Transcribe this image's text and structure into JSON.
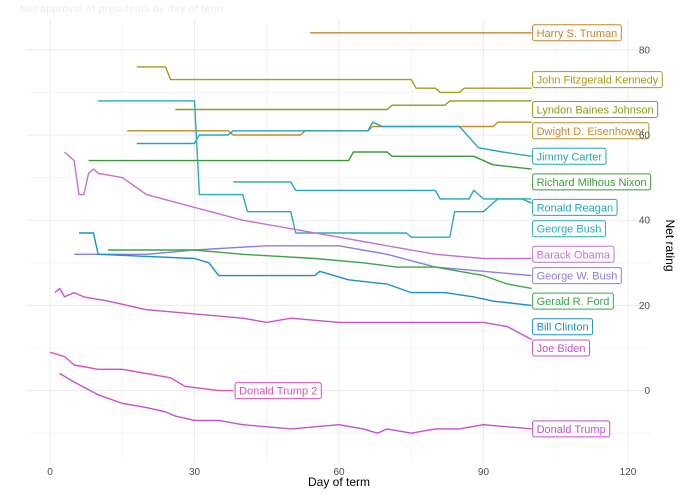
{
  "header": {
    "faint_text": "Net approval of presidents by day of term"
  },
  "chart_data": {
    "type": "line",
    "title": "",
    "xlabel": "Day of term",
    "ylabel": "Net rating",
    "xlim": [
      -5,
      125
    ],
    "ylim": [
      -17,
      87
    ],
    "xticks": [
      0,
      30,
      60,
      90,
      120
    ],
    "yticks": [
      0,
      20,
      40,
      60,
      80
    ],
    "grid": true,
    "y_axis_position": "right",
    "series": [
      {
        "name": "Harry S. Truman",
        "color": "#c8822e",
        "label_y": 84,
        "points": [
          [
            54,
            84
          ],
          [
            100,
            84
          ]
        ]
      },
      {
        "name": "John Fitzgerald Kennedy",
        "color": "#a89a1c",
        "label_y": 73,
        "points": [
          [
            18,
            76
          ],
          [
            24,
            76
          ],
          [
            25,
            73
          ],
          [
            75,
            73
          ],
          [
            76,
            71
          ],
          [
            80,
            71
          ],
          [
            81,
            70
          ],
          [
            85,
            70
          ],
          [
            86,
            71
          ],
          [
            95,
            71
          ],
          [
            100,
            71
          ]
        ]
      },
      {
        "name": "Lyndon Baines Johnson",
        "color": "#8a9c1e",
        "label_y": 66,
        "points": [
          [
            26,
            66
          ],
          [
            70,
            66
          ],
          [
            71,
            67
          ],
          [
            82,
            67
          ],
          [
            83,
            68
          ],
          [
            100,
            68
          ]
        ]
      },
      {
        "name": "Dwight D. Eisenhower",
        "color": "#c28a2a",
        "label_y": 61,
        "points": [
          [
            16,
            61
          ],
          [
            37,
            61
          ],
          [
            38,
            60
          ],
          [
            52,
            60
          ],
          [
            53,
            61
          ],
          [
            66,
            61
          ],
          [
            67,
            62
          ],
          [
            92,
            62
          ],
          [
            93,
            63
          ],
          [
            100,
            63
          ]
        ]
      },
      {
        "name": "Jimmy Carter",
        "color": "#26a6b8",
        "label_y": 55,
        "points": [
          [
            18,
            58
          ],
          [
            30,
            58
          ],
          [
            31,
            60
          ],
          [
            37,
            60
          ],
          [
            38,
            61
          ],
          [
            66,
            61
          ],
          [
            67,
            63
          ],
          [
            69,
            62
          ],
          [
            85,
            62
          ],
          [
            89,
            57
          ],
          [
            94,
            56
          ],
          [
            100,
            55
          ]
        ]
      },
      {
        "name": "Richard Milhous Nixon",
        "color": "#3a9a3a",
        "label_y": 49,
        "points": [
          [
            8,
            54
          ],
          [
            62,
            54
          ],
          [
            63,
            56
          ],
          [
            70,
            56
          ],
          [
            71,
            55
          ],
          [
            88,
            55
          ],
          [
            92,
            53
          ],
          [
            100,
            52
          ]
        ]
      },
      {
        "name": "Ronald Reagan",
        "color": "#22a6bd",
        "label_y": 43,
        "points": [
          [
            38,
            49
          ],
          [
            50,
            49
          ],
          [
            51,
            47
          ],
          [
            80,
            47
          ],
          [
            81,
            45
          ],
          [
            87,
            45
          ],
          [
            88,
            47
          ],
          [
            90,
            45
          ],
          [
            98,
            45
          ],
          [
            100,
            44
          ]
        ]
      },
      {
        "name": "George Bush",
        "color": "#28aac2",
        "label_y": 38,
        "points": [
          [
            10,
            68
          ],
          [
            30,
            68
          ],
          [
            31,
            46
          ],
          [
            40,
            46
          ],
          [
            41,
            42
          ],
          [
            50,
            42
          ],
          [
            51,
            37
          ],
          [
            74,
            37
          ],
          [
            75,
            36
          ],
          [
            83,
            36
          ],
          [
            84,
            42
          ],
          [
            90,
            42
          ],
          [
            93,
            45
          ],
          [
            100,
            45
          ]
        ]
      },
      {
        "name": "Barack Obama",
        "color": "#c66fd4",
        "label_y": 32,
        "points": [
          [
            3,
            56
          ],
          [
            4,
            55
          ],
          [
            5,
            54
          ],
          [
            6,
            46
          ],
          [
            7,
            46
          ],
          [
            8,
            51
          ],
          [
            9,
            52
          ],
          [
            10,
            51
          ],
          [
            15,
            50
          ],
          [
            20,
            46
          ],
          [
            30,
            43
          ],
          [
            40,
            40
          ],
          [
            50,
            38
          ],
          [
            60,
            36
          ],
          [
            70,
            34
          ],
          [
            80,
            32
          ],
          [
            90,
            31
          ],
          [
            100,
            31
          ]
        ]
      },
      {
        "name": "George W. Bush",
        "color": "#8a7fe0",
        "label_y": 27,
        "points": [
          [
            5,
            32
          ],
          [
            20,
            32
          ],
          [
            30,
            33
          ],
          [
            45,
            34
          ],
          [
            60,
            34
          ],
          [
            70,
            32
          ],
          [
            80,
            29
          ],
          [
            90,
            28
          ],
          [
            100,
            27
          ]
        ]
      },
      {
        "name": "Gerald R. Ford",
        "color": "#3aa64a",
        "label_y": 21,
        "points": [
          [
            12,
            33
          ],
          [
            30,
            33
          ],
          [
            40,
            32
          ],
          [
            55,
            31
          ],
          [
            65,
            30
          ],
          [
            72,
            29
          ],
          [
            80,
            29
          ],
          [
            90,
            27
          ],
          [
            95,
            25
          ],
          [
            100,
            24
          ]
        ]
      },
      {
        "name": "Bill Clinton",
        "color": "#1a8fc9",
        "label_y": 15,
        "points": [
          [
            6,
            37
          ],
          [
            9,
            37
          ],
          [
            10,
            32
          ],
          [
            30,
            31
          ],
          [
            33,
            30
          ],
          [
            35,
            27
          ],
          [
            45,
            27
          ],
          [
            55,
            27
          ],
          [
            56,
            28
          ],
          [
            62,
            26
          ],
          [
            70,
            25
          ],
          [
            75,
            23
          ],
          [
            82,
            23
          ],
          [
            88,
            22
          ],
          [
            92,
            21
          ],
          [
            100,
            20
          ]
        ]
      },
      {
        "name": "Joe Biden",
        "color": "#cc50cc",
        "label_y": 10,
        "points": [
          [
            1,
            23
          ],
          [
            2,
            24
          ],
          [
            3,
            22
          ],
          [
            5,
            23
          ],
          [
            7,
            22
          ],
          [
            12,
            21
          ],
          [
            20,
            19
          ],
          [
            30,
            18
          ],
          [
            40,
            17
          ],
          [
            45,
            16
          ],
          [
            50,
            17
          ],
          [
            60,
            16
          ],
          [
            70,
            16
          ],
          [
            80,
            16
          ],
          [
            90,
            16
          ],
          [
            95,
            15
          ],
          [
            100,
            12
          ]
        ]
      },
      {
        "name": "Donald Trump 2",
        "color": "#d94fb8",
        "label_y": 0,
        "points": [
          [
            0,
            9
          ],
          [
            3,
            8
          ],
          [
            5,
            6
          ],
          [
            10,
            5
          ],
          [
            15,
            5
          ],
          [
            20,
            4
          ],
          [
            25,
            3
          ],
          [
            28,
            1
          ],
          [
            35,
            0
          ],
          [
            38,
            0
          ]
        ]
      },
      {
        "name": "Donald Trump",
        "color": "#c34fd6",
        "label_y": -9,
        "points": [
          [
            2,
            4
          ],
          [
            5,
            2
          ],
          [
            10,
            -1
          ],
          [
            15,
            -3
          ],
          [
            20,
            -4
          ],
          [
            24,
            -5
          ],
          [
            26,
            -6
          ],
          [
            30,
            -7
          ],
          [
            35,
            -7
          ],
          [
            40,
            -8
          ],
          [
            50,
            -9
          ],
          [
            60,
            -8
          ],
          [
            65,
            -9
          ],
          [
            68,
            -10
          ],
          [
            70,
            -9
          ],
          [
            75,
            -10
          ],
          [
            80,
            -9
          ],
          [
            85,
            -9
          ],
          [
            90,
            -8
          ],
          [
            100,
            -9
          ]
        ]
      }
    ]
  }
}
